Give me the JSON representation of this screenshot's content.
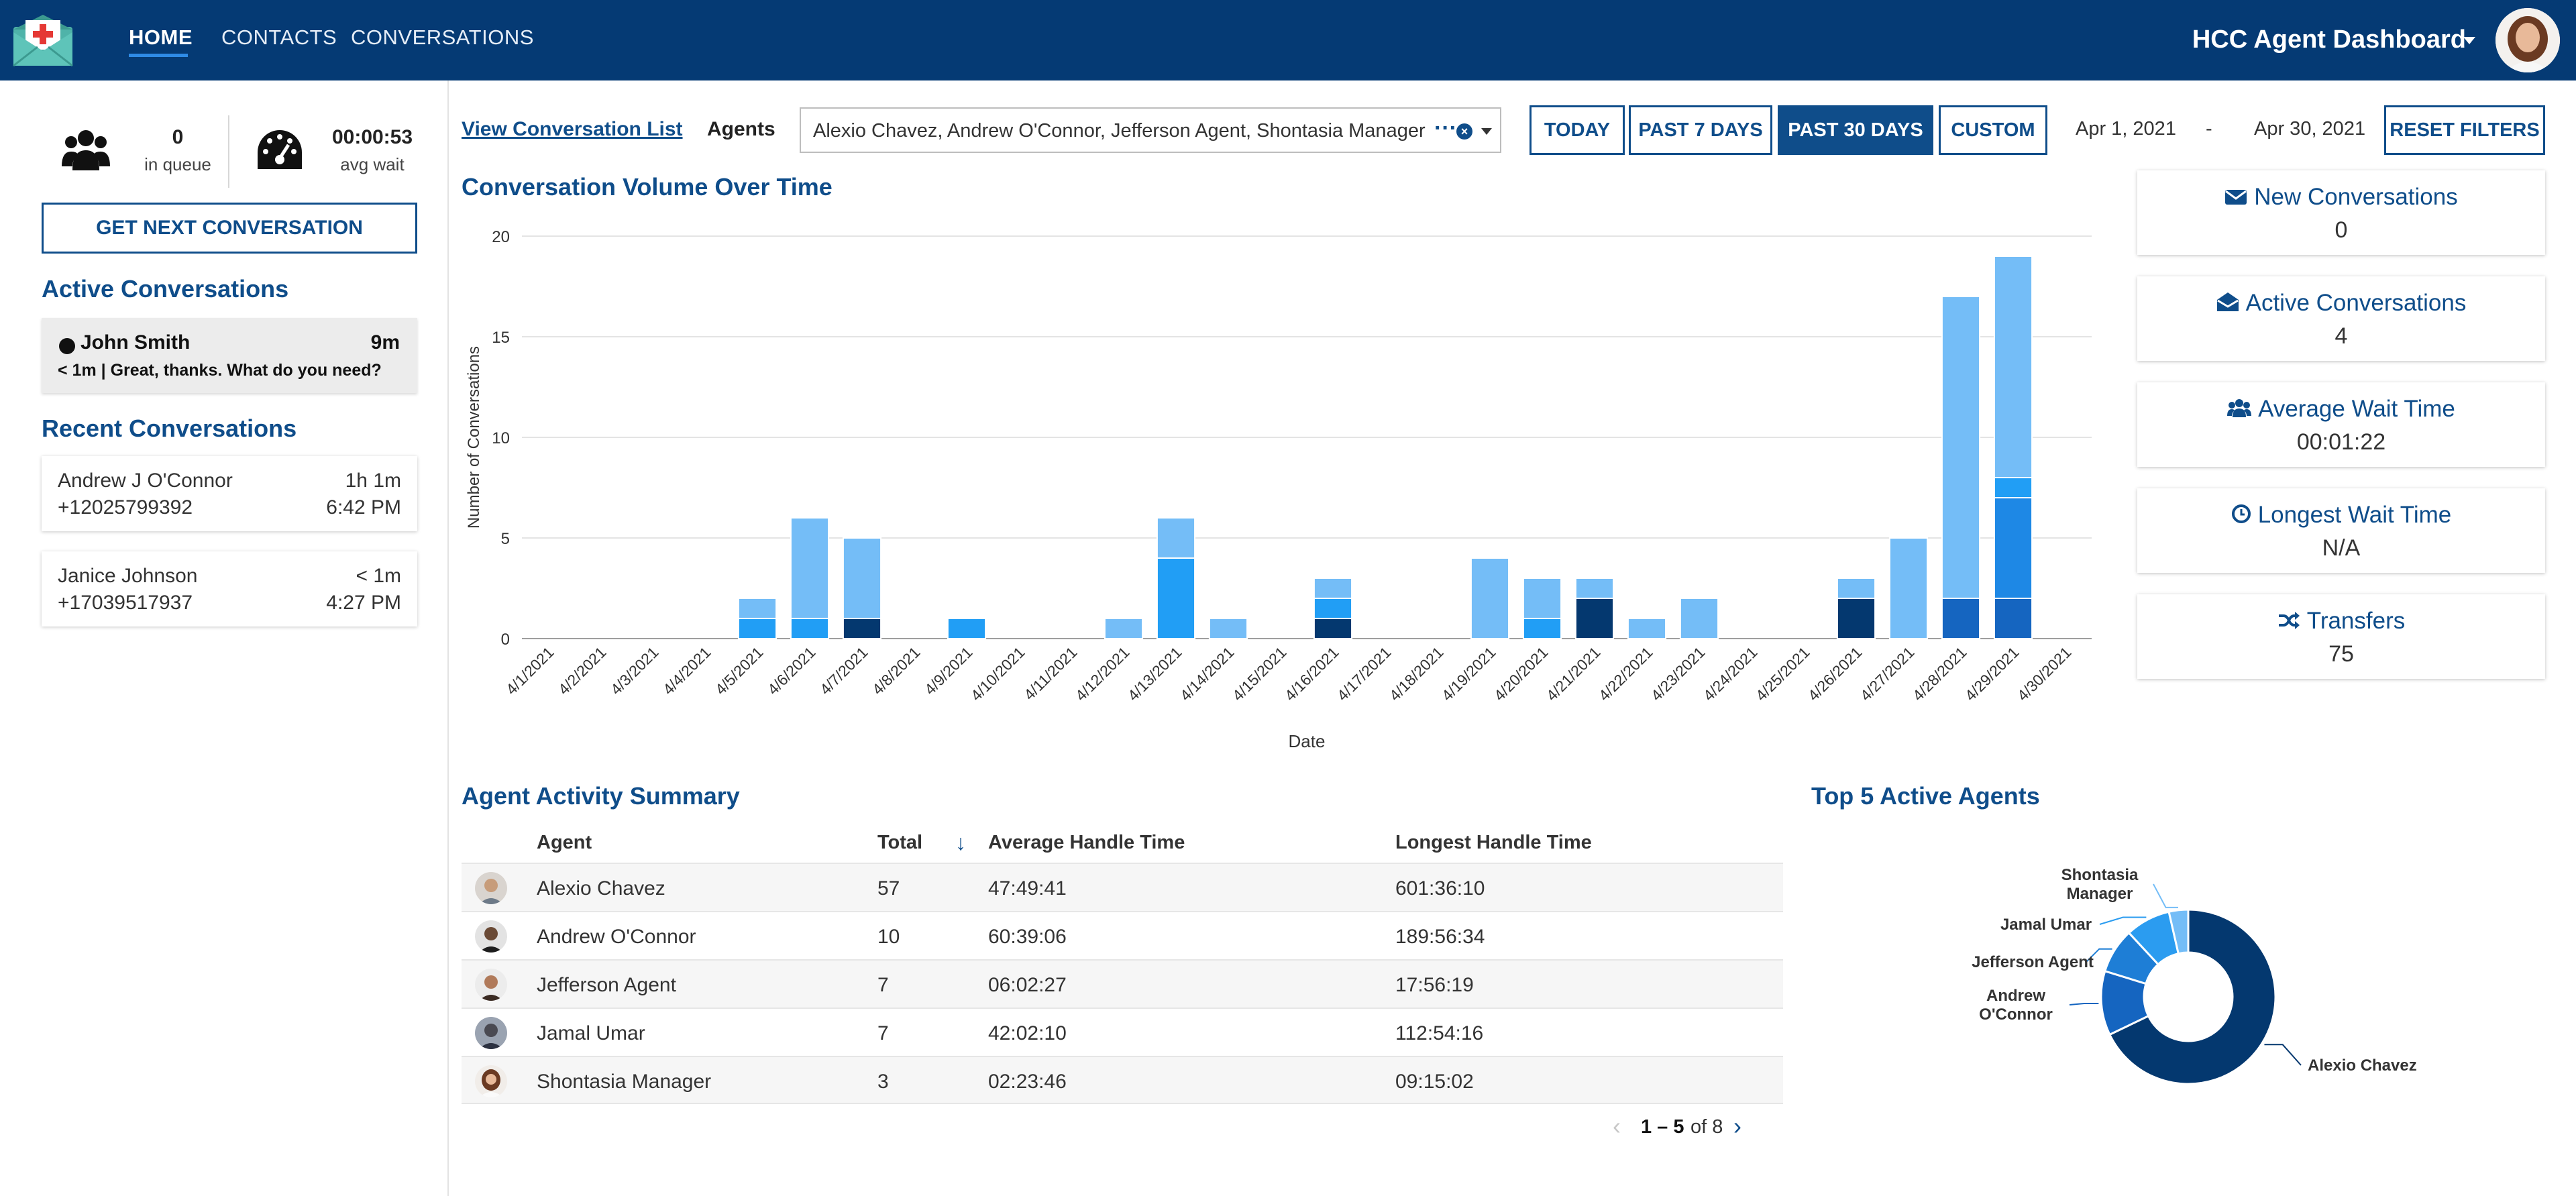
{
  "nav": {
    "items": [
      "HOME",
      "CONTACTS",
      "CONVERSATIONS"
    ],
    "title": "HCC Agent Dashboard"
  },
  "queue": {
    "in_queue_value": "0",
    "in_queue_label": "in queue",
    "avg_wait_value": "00:00:53",
    "avg_wait_label": "avg wait"
  },
  "get_next_label": "GET NEXT CONVERSATION",
  "active_conversations": {
    "title": "Active Conversations",
    "items": [
      {
        "name": "John Smith",
        "duration": "9m",
        "preview": "< 1m | Great, thanks. What do you need?"
      }
    ]
  },
  "recent_conversations": {
    "title": "Recent Conversations",
    "items": [
      {
        "name": "Andrew J O'Connor",
        "duration": "1h 1m",
        "phone": "+12025799392",
        "time": "6:42 PM"
      },
      {
        "name": "Janice Johnson",
        "duration": "< 1m",
        "phone": "+17039517937",
        "time": "4:27 PM"
      }
    ]
  },
  "filters": {
    "view_list_link": "View Conversation List",
    "agents_label": "Agents",
    "agents_value": "Alexio Chavez, Andrew O'Connor, Jefferson Agent, Shontasia Manager",
    "ranges": [
      "TODAY",
      "PAST 7 DAYS",
      "PAST 30 DAYS",
      "CUSTOM"
    ],
    "selected_range": "PAST 30 DAYS",
    "date_start": "Apr 1, 2021",
    "date_sep": "-",
    "date_end": "Apr 30, 2021",
    "reset_label": "RESET FILTERS"
  },
  "chart_title": "Conversation Volume Over Time",
  "chart_data": {
    "type": "bar",
    "stacked": true,
    "xlabel": "Date",
    "ylabel": "Number of Conversations",
    "ylim": [
      0,
      20
    ],
    "yticks": [
      0,
      5,
      10,
      15,
      20
    ],
    "grid": true,
    "categories": [
      "4/1/2021",
      "4/2/2021",
      "4/3/2021",
      "4/4/2021",
      "4/5/2021",
      "4/6/2021",
      "4/7/2021",
      "4/8/2021",
      "4/9/2021",
      "4/10/2021",
      "4/11/2021",
      "4/12/2021",
      "4/13/2021",
      "4/14/2021",
      "4/15/2021",
      "4/16/2021",
      "4/17/2021",
      "4/18/2021",
      "4/19/2021",
      "4/20/2021",
      "4/21/2021",
      "4/22/2021",
      "4/23/2021",
      "4/24/2021",
      "4/25/2021",
      "4/26/2021",
      "4/27/2021",
      "4/28/2021",
      "4/29/2021",
      "4/30/2021"
    ],
    "series": [
      {
        "color": "#04386f",
        "values": [
          0,
          0,
          0,
          0,
          0,
          0,
          1,
          0,
          0,
          0,
          0,
          0,
          0,
          0,
          0,
          1,
          0,
          0,
          0,
          0,
          2,
          0,
          0,
          0,
          0,
          2,
          0,
          0,
          0,
          0
        ]
      },
      {
        "color": "#1565c0",
        "values": [
          0,
          0,
          0,
          0,
          0,
          0,
          0,
          0,
          0,
          0,
          0,
          0,
          0,
          0,
          0,
          0,
          0,
          0,
          0,
          0,
          0,
          0,
          0,
          0,
          0,
          0,
          0,
          2,
          2,
          0
        ]
      },
      {
        "color": "#1e88e5",
        "values": [
          0,
          0,
          0,
          0,
          0,
          0,
          0,
          0,
          0,
          0,
          0,
          0,
          0,
          0,
          0,
          0,
          0,
          0,
          0,
          0,
          0,
          0,
          0,
          0,
          0,
          0,
          0,
          0,
          5,
          0
        ]
      },
      {
        "color": "#219ef5",
        "values": [
          0,
          0,
          0,
          0,
          1,
          1,
          0,
          0,
          1,
          0,
          0,
          0,
          4,
          0,
          0,
          1,
          0,
          0,
          0,
          1,
          0,
          0,
          0,
          0,
          0,
          0,
          0,
          0,
          1,
          0
        ]
      },
      {
        "color": "#74bdf7",
        "values": [
          0,
          0,
          0,
          0,
          1,
          5,
          4,
          0,
          0,
          0,
          0,
          1,
          2,
          1,
          0,
          1,
          0,
          0,
          4,
          2,
          1,
          1,
          2,
          0,
          0,
          1,
          5,
          15,
          11,
          0
        ]
      }
    ]
  },
  "metrics": [
    {
      "title": "New Conversations",
      "value": "0",
      "icon": "envelope-icon"
    },
    {
      "title": "Active Conversations",
      "value": "4",
      "icon": "envelope-open-icon"
    },
    {
      "title": "Average Wait Time",
      "value": "00:01:22",
      "icon": "users-icon"
    },
    {
      "title": "Longest Wait Time",
      "value": "N/A",
      "icon": "clock-icon"
    },
    {
      "title": "Transfers",
      "value": "75",
      "icon": "shuffle-icon"
    }
  ],
  "agent_table": {
    "title": "Agent Activity Summary",
    "columns": [
      "Agent",
      "Total",
      "Average Handle Time",
      "Longest Handle Time"
    ],
    "rows": [
      {
        "agent": "Alexio Chavez",
        "total": "57",
        "avg": "47:49:41",
        "longest": "601:36:10"
      },
      {
        "agent": "Andrew O'Connor",
        "total": "10",
        "avg": "60:39:06",
        "longest": "189:56:34"
      },
      {
        "agent": "Jefferson Agent",
        "total": "7",
        "avg": "06:02:27",
        "longest": "17:56:19"
      },
      {
        "agent": "Jamal Umar",
        "total": "7",
        "avg": "42:02:10",
        "longest": "112:54:16"
      },
      {
        "agent": "Shontasia Manager",
        "total": "3",
        "avg": "02:23:46",
        "longest": "09:15:02"
      }
    ],
    "pager_range": "1 – 5",
    "pager_of": "of 8"
  },
  "top_agents": {
    "title": "Top 5 Active Agents",
    "chart_data": {
      "type": "pie",
      "donut": true,
      "labels": [
        "Alexio Chavez",
        "Andrew O'Connor",
        "Jefferson Agent",
        "Jamal Umar",
        "Shontasia Manager"
      ],
      "values": [
        57,
        10,
        7,
        7,
        3
      ],
      "colors": [
        "#04386f",
        "#1565c0",
        "#1e7ed6",
        "#2b9cf0",
        "#74bdf7"
      ]
    }
  }
}
